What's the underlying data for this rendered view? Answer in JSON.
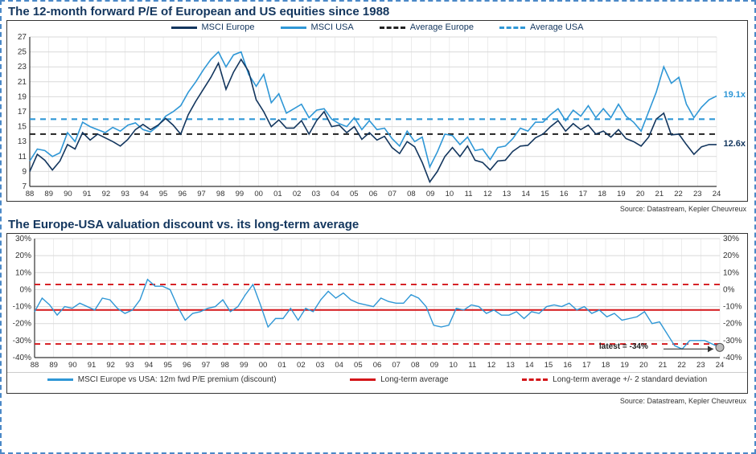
{
  "chart1": {
    "title": "The 12-month forward P/E of European and US equities since 1988",
    "title_fontsize": 15,
    "type": "line",
    "background_color": "#ffffff",
    "border_color": "#333333",
    "grid_color": "#d9d9d9",
    "x": {
      "min": 1988,
      "max": 2024,
      "tick_step": 1,
      "tick_labels": [
        "88",
        "89",
        "90",
        "91",
        "92",
        "93",
        "94",
        "95",
        "96",
        "97",
        "98",
        "99",
        "00",
        "01",
        "02",
        "03",
        "04",
        "05",
        "06",
        "07",
        "08",
        "09",
        "10",
        "11",
        "12",
        "13",
        "14",
        "15",
        "16",
        "17",
        "18",
        "19",
        "20",
        "21",
        "22",
        "23",
        "24"
      ]
    },
    "y": {
      "min": 7,
      "max": 27,
      "tick_step": 2,
      "label_fontsize": 10
    },
    "series": {
      "msci_europe": {
        "label": "MSCI Europe",
        "color": "#13365e",
        "line_width": 1.6,
        "dash": "solid",
        "values": [
          9.0,
          11.3,
          10.5,
          9.2,
          10.4,
          12.6,
          12.0,
          14.2,
          13.2,
          14.0,
          13.5,
          13.0,
          12.4,
          13.3,
          14.6,
          15.3,
          14.6,
          15.2,
          16.1,
          15.2,
          14.0,
          16.6,
          18.4,
          20.0,
          21.6,
          23.5,
          20.0,
          22.3,
          24.0,
          22.4,
          18.6,
          17.0,
          15.0,
          15.9,
          14.8,
          14.8,
          15.8,
          14.0,
          15.8,
          17.0,
          15.0,
          15.2,
          14.2,
          15.0,
          13.3,
          14.2,
          13.2,
          13.7,
          12.2,
          11.4,
          13.0,
          12.3,
          10.2,
          7.6,
          9.0,
          11.0,
          12.2,
          11.0,
          12.4,
          10.5,
          10.2,
          9.2,
          10.4,
          10.5,
          11.7,
          12.4,
          12.5,
          13.5,
          14.0,
          15.0,
          15.8,
          14.4,
          15.4,
          14.6,
          15.2,
          14.0,
          14.4,
          13.6,
          14.6,
          13.4,
          13.0,
          12.4,
          13.6,
          16.0,
          16.8,
          13.9,
          14.0,
          12.6,
          11.3,
          12.3,
          12.6,
          12.6
        ]
      },
      "msci_usa": {
        "label": "MSCI USA",
        "color": "#2f97d6",
        "line_width": 1.6,
        "dash": "solid",
        "values": [
          10.4,
          12.0,
          11.8,
          11.0,
          11.5,
          14.2,
          13.0,
          15.6,
          15.0,
          14.6,
          14.2,
          14.9,
          14.4,
          15.2,
          15.5,
          14.6,
          14.3,
          15.1,
          16.4,
          17.0,
          17.8,
          19.6,
          21.0,
          22.6,
          24.0,
          25.0,
          23.0,
          24.6,
          25.0,
          22.0,
          20.4,
          22.0,
          18.2,
          19.4,
          16.8,
          17.4,
          18.0,
          16.2,
          17.2,
          17.4,
          16.0,
          15.4,
          15.0,
          16.2,
          14.6,
          15.8,
          14.6,
          14.8,
          13.4,
          12.4,
          14.4,
          13.0,
          13.6,
          9.6,
          11.6,
          14.0,
          13.8,
          12.6,
          13.6,
          11.8,
          12.0,
          10.6,
          12.2,
          12.4,
          13.4,
          14.8,
          14.4,
          15.6,
          15.6,
          16.6,
          17.4,
          15.8,
          17.2,
          16.4,
          17.8,
          16.2,
          17.4,
          16.2,
          18.0,
          16.4,
          15.6,
          14.4,
          17.0,
          19.6,
          23.0,
          20.8,
          21.6,
          18.0,
          16.2,
          17.6,
          18.6,
          19.1
        ]
      },
      "avg_europe": {
        "label": "Average Europe",
        "color": "#222222",
        "line_width": 2,
        "dash": "dashed",
        "value": 14.0
      },
      "avg_usa": {
        "label": "Average USA",
        "color": "#2f97d6",
        "line_width": 2.2,
        "dash": "dashed",
        "value": 16.0
      }
    },
    "annotations": {
      "usa_latest": {
        "text": "19.1x",
        "color": "#2f97d6"
      },
      "europe_latest": {
        "text": "12.6x",
        "color": "#13365e"
      }
    },
    "legend_position": "top-center",
    "source": "Source: Datastream, Kepler Cheuvreux"
  },
  "chart2": {
    "title": "The Europe-USA valuation discount vs. its long-term average",
    "title_fontsize": 15,
    "type": "line",
    "background_color": "#ffffff",
    "border_color": "#333333",
    "grid_color": "#d9d9d9",
    "x": {
      "min": 1988,
      "max": 2024,
      "tick_step": 1,
      "tick_labels": [
        "88",
        "89",
        "90",
        "91",
        "92",
        "93",
        "94",
        "95",
        "96",
        "97",
        "98",
        "99",
        "00",
        "01",
        "02",
        "03",
        "04",
        "05",
        "06",
        "07",
        "08",
        "09",
        "10",
        "11",
        "12",
        "13",
        "14",
        "15",
        "16",
        "17",
        "18",
        "19",
        "20",
        "21",
        "22",
        "23",
        "24"
      ]
    },
    "y": {
      "min": -40,
      "max": 30,
      "tick_step": 10,
      "suffix": "%",
      "dual_axis": true
    },
    "series": {
      "premium": {
        "label": "MSCI Europe vs USA: 12m fwd P/E premium (discount)",
        "color": "#2f97d6",
        "line_width": 1.4,
        "dash": "solid",
        "values": [
          -13,
          -5,
          -9,
          -15,
          -10,
          -11,
          -8,
          -10,
          -12,
          -5,
          -6,
          -11,
          -14,
          -12,
          -6,
          6,
          2,
          2,
          0,
          -10,
          -18,
          -14,
          -13,
          -11,
          -10,
          -6,
          -13,
          -10,
          -3,
          3,
          -9,
          -22,
          -17,
          -17,
          -11,
          -18,
          -11,
          -13,
          -6,
          -1,
          -5,
          -2,
          -6,
          -8,
          -9,
          -10,
          -5,
          -7,
          -8,
          -8,
          -3,
          -5,
          -10,
          -21,
          -22,
          -21,
          -11,
          -12,
          -9,
          -10,
          -14,
          -12,
          -15,
          -15,
          -13,
          -17,
          -13,
          -14,
          -10,
          -9,
          -10,
          -8,
          -12,
          -10,
          -14,
          -12,
          -16,
          -14,
          -18,
          -17,
          -16,
          -13,
          -20,
          -19,
          -26,
          -33,
          -35,
          -30,
          -30,
          -30,
          -32,
          -34
        ]
      },
      "lt_avg": {
        "label": "Long-term average",
        "color": "#d4161a",
        "line_width": 2,
        "dash": "solid",
        "value": -12
      },
      "upper_band": {
        "label": "Long-term average +/- 2 standard deviation",
        "color": "#d4161a",
        "line_width": 1.8,
        "dash": "dashed",
        "value": 3
      },
      "lower_band": {
        "color": "#d4161a",
        "line_width": 1.8,
        "dash": "dashed",
        "value": -32
      }
    },
    "annotations": {
      "latest": {
        "text": "latest = -34%",
        "color": "#222222"
      }
    },
    "source": "Source: Datastream, Kepler Cheuvreux"
  },
  "lt_half": 23
}
